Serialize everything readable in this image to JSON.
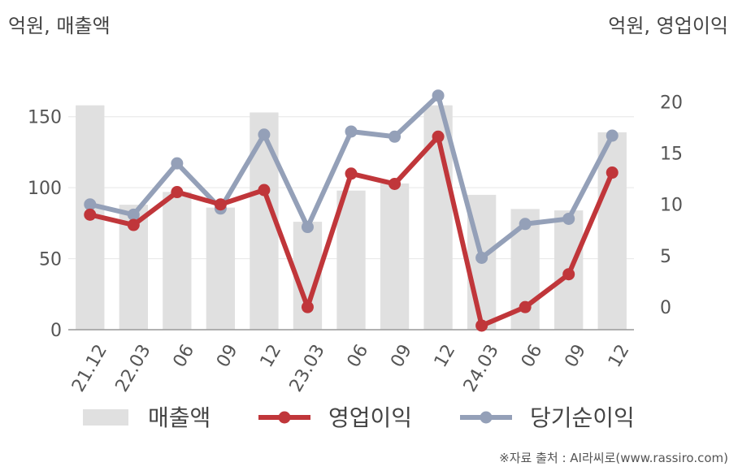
{
  "unit_left": "억원, 매출액",
  "unit_right": "억원, 영업이익",
  "source": "※자료 출처 : AI라씨로(www.rassiro.com)",
  "chart_data": {
    "type": "bar+line",
    "categories": [
      "21.12",
      "22.03",
      "06",
      "09",
      "12",
      "23.03",
      "06",
      "09",
      "12",
      "24.03",
      "06",
      "09",
      "12"
    ],
    "ylim_left": [
      0,
      175
    ],
    "yticks_left": [
      0,
      50,
      100,
      150
    ],
    "ylim_right": [
      -2.2,
      22
    ],
    "yticks_right": [
      0,
      5,
      10,
      15,
      20
    ],
    "grid": true,
    "legend_position": "bottom",
    "series": [
      {
        "name": "매출액",
        "type": "bar",
        "axis": "left",
        "color": "#e0e0e0",
        "values": [
          158,
          88,
          97,
          86,
          153,
          76,
          98,
          103,
          158,
          95,
          85,
          84,
          139
        ]
      },
      {
        "name": "영업이익",
        "type": "line",
        "axis": "right",
        "color": "#c0363a",
        "values": [
          9.0,
          8.0,
          11.2,
          10.0,
          11.4,
          0.0,
          13.0,
          12.0,
          16.6,
          -1.8,
          0.0,
          3.2,
          13.1
        ]
      },
      {
        "name": "당기순이익",
        "type": "line",
        "axis": "right",
        "color": "#94a0b8",
        "values": [
          10.0,
          9.0,
          14.0,
          9.6,
          16.8,
          7.8,
          17.1,
          16.6,
          20.6,
          4.8,
          8.1,
          8.6,
          16.7
        ]
      }
    ]
  }
}
